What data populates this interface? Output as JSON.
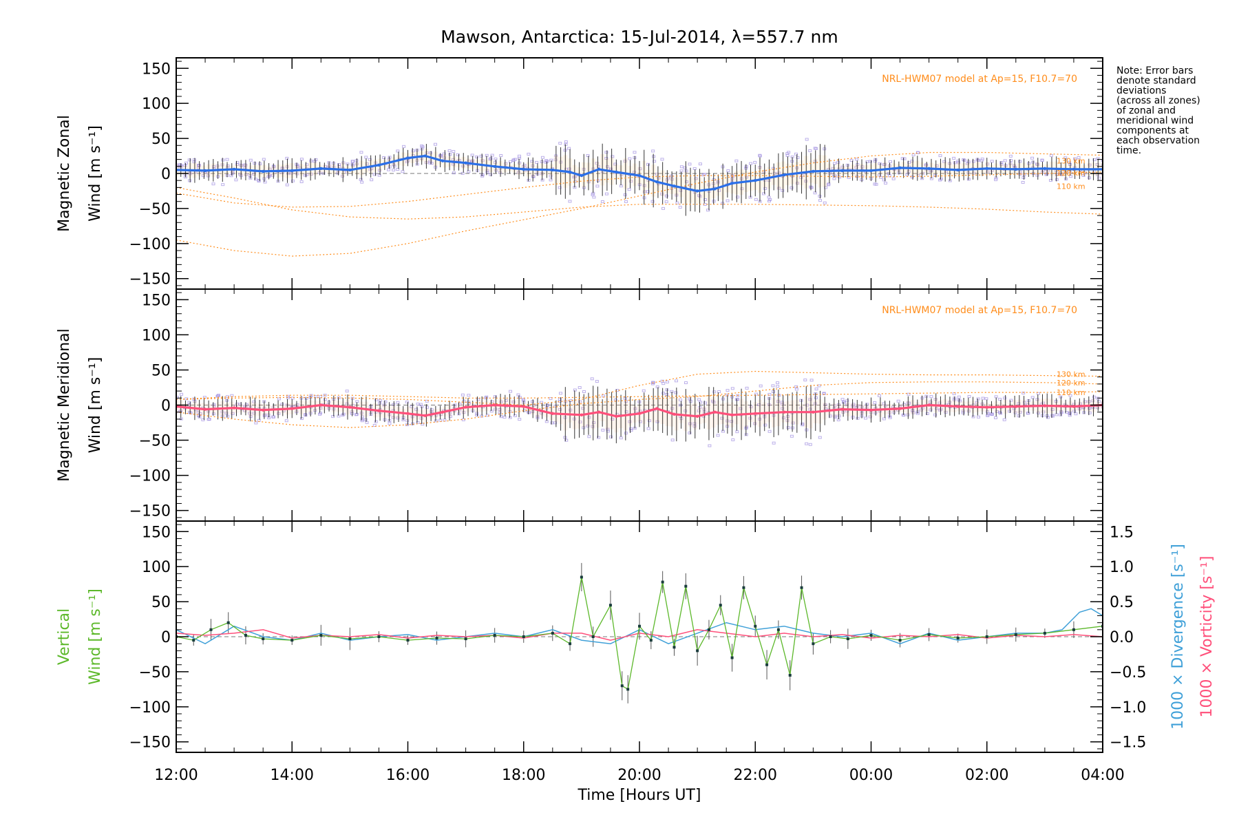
{
  "title": "Mawson, Antarctica: 15-Jul-2014, λ=557.7 nm",
  "note_lines": [
    "Note: Error bars",
    "denote standard",
    "deviations",
    "(across all zones)",
    "of zonal and",
    "meridional wind",
    "components at",
    "each observation",
    "time."
  ],
  "xlabel": "Time [Hours UT]",
  "x_ticks": [
    "12:00",
    "14:00",
    "16:00",
    "18:00",
    "20:00",
    "22:00",
    "00:00",
    "02:00",
    "04:00"
  ],
  "colors": {
    "zonal": "#2a6fe8",
    "meridional": "#ff4f7a",
    "vertical": "#5cb82a",
    "divergence": "#3fa0d8",
    "vorticity": "#ff4f7a",
    "model": "#ff8c1a",
    "scatter": "#9f8fe0",
    "errorbar": "#333333"
  },
  "chart_data": [
    {
      "type": "line",
      "panel": "zonal",
      "ylabel_line1": "Magnetic Zonal",
      "ylabel_line2": "Wind [m s⁻¹]",
      "ylim": [
        -165,
        165
      ],
      "y_ticks": [
        "150",
        "100",
        "50",
        "0",
        "−50",
        "−100",
        "−150"
      ],
      "model_label": "NRL-HWM07 model at Ap=15, F10.7=70",
      "model_height_labels": [
        "130 km",
        "120 km",
        "110 km"
      ],
      "series_points": [
        [
          12.0,
          5
        ],
        [
          12.5,
          4
        ],
        [
          13.0,
          6
        ],
        [
          13.5,
          3
        ],
        [
          14.0,
          4
        ],
        [
          14.5,
          7
        ],
        [
          15.0,
          5
        ],
        [
          15.5,
          12
        ],
        [
          16.0,
          22
        ],
        [
          16.3,
          25
        ],
        [
          16.6,
          18
        ],
        [
          17.0,
          15
        ],
        [
          17.5,
          10
        ],
        [
          18.0,
          6
        ],
        [
          18.5,
          5
        ],
        [
          18.8,
          2
        ],
        [
          19.0,
          -3
        ],
        [
          19.3,
          6
        ],
        [
          19.6,
          2
        ],
        [
          20.0,
          -3
        ],
        [
          20.3,
          -12
        ],
        [
          20.6,
          -18
        ],
        [
          21.0,
          -25
        ],
        [
          21.3,
          -22
        ],
        [
          21.6,
          -14
        ],
        [
          22.0,
          -10
        ],
        [
          22.5,
          -2
        ],
        [
          23.0,
          3
        ],
        [
          23.5,
          4
        ],
        [
          24.0,
          4
        ],
        [
          24.5,
          8
        ],
        [
          25.0,
          7
        ],
        [
          25.5,
          5
        ],
        [
          26.0,
          7
        ],
        [
          26.5,
          6
        ],
        [
          27.0,
          7
        ],
        [
          27.5,
          6
        ],
        [
          28.0,
          6
        ]
      ],
      "model_curves": [
        {
          "name": "130 km",
          "points": [
            [
              12.0,
              -95
            ],
            [
              13.0,
              -110
            ],
            [
              14.0,
              -118
            ],
            [
              15.0,
              -114
            ],
            [
              16.0,
              -100
            ],
            [
              17.0,
              -82
            ],
            [
              18.0,
              -66
            ],
            [
              19.0,
              -50
            ],
            [
              20.0,
              -32
            ],
            [
              21.0,
              -14
            ],
            [
              22.0,
              2
            ],
            [
              23.0,
              15
            ],
            [
              24.0,
              25
            ],
            [
              25.0,
              30
            ],
            [
              26.0,
              30
            ],
            [
              27.0,
              28
            ],
            [
              28.0,
              26
            ]
          ]
        },
        {
          "name": "120 km",
          "points": [
            [
              12.0,
              -28
            ],
            [
              13.0,
              -42
            ],
            [
              14.0,
              -48
            ],
            [
              15.0,
              -47
            ],
            [
              16.0,
              -40
            ],
            [
              17.0,
              -30
            ],
            [
              18.0,
              -20
            ],
            [
              19.0,
              -11
            ],
            [
              20.0,
              -5
            ],
            [
              21.0,
              -3
            ],
            [
              22.0,
              -3
            ],
            [
              23.0,
              -4
            ],
            [
              24.0,
              -5
            ],
            [
              25.0,
              -4
            ],
            [
              26.0,
              -2
            ],
            [
              27.0,
              0
            ],
            [
              28.0,
              2
            ]
          ]
        },
        {
          "name": "110 km",
          "points": [
            [
              12.0,
              -20
            ],
            [
              13.0,
              -35
            ],
            [
              14.0,
              -52
            ],
            [
              15.0,
              -62
            ],
            [
              16.0,
              -65
            ],
            [
              17.0,
              -62
            ],
            [
              18.0,
              -55
            ],
            [
              19.0,
              -48
            ],
            [
              20.0,
              -44
            ],
            [
              21.0,
              -44
            ],
            [
              22.0,
              -44
            ],
            [
              23.0,
              -45
            ],
            [
              24.0,
              -46
            ],
            [
              25.0,
              -48
            ],
            [
              26.0,
              -51
            ],
            [
              27.0,
              -55
            ],
            [
              28.0,
              -58
            ]
          ]
        }
      ]
    },
    {
      "type": "line",
      "panel": "meridional",
      "ylabel_line1": "Magnetic Meridional",
      "ylabel_line2": "Wind [m s⁻¹]",
      "ylim": [
        -165,
        165
      ],
      "y_ticks": [
        "150",
        "100",
        "50",
        "0",
        "−50",
        "−100",
        "−150"
      ],
      "model_label": "NRL-HWM07 model at Ap=15, F10.7=70",
      "model_height_labels": [
        "130 km",
        "120 km",
        "110 km"
      ],
      "series_points": [
        [
          12.0,
          -2
        ],
        [
          12.5,
          -6
        ],
        [
          13.0,
          -4
        ],
        [
          13.5,
          -7
        ],
        [
          14.0,
          -5
        ],
        [
          14.5,
          0
        ],
        [
          15.0,
          -3
        ],
        [
          15.5,
          -8
        ],
        [
          16.0,
          -12
        ],
        [
          16.3,
          -15
        ],
        [
          16.6,
          -10
        ],
        [
          17.0,
          -3
        ],
        [
          17.5,
          0
        ],
        [
          18.0,
          -2
        ],
        [
          18.5,
          -12
        ],
        [
          19.0,
          -14
        ],
        [
          19.3,
          -10
        ],
        [
          19.6,
          -16
        ],
        [
          20.0,
          -12
        ],
        [
          20.3,
          -5
        ],
        [
          20.6,
          -13
        ],
        [
          21.0,
          -16
        ],
        [
          21.3,
          -10
        ],
        [
          21.6,
          -14
        ],
        [
          22.0,
          -12
        ],
        [
          22.5,
          -10
        ],
        [
          23.0,
          -10
        ],
        [
          23.5,
          -6
        ],
        [
          24.0,
          -7
        ],
        [
          24.5,
          -5
        ],
        [
          25.0,
          0
        ],
        [
          25.5,
          -2
        ],
        [
          26.0,
          -3
        ],
        [
          26.5,
          -2
        ],
        [
          27.0,
          -1
        ],
        [
          27.5,
          -2
        ],
        [
          28.0,
          0
        ]
      ],
      "model_curves": [
        {
          "name": "130 km",
          "points": [
            [
              12.0,
              8
            ],
            [
              13.0,
              10
            ],
            [
              14.0,
              11
            ],
            [
              15.0,
              10
            ],
            [
              16.0,
              8
            ],
            [
              17.0,
              4
            ],
            [
              18.0,
              0
            ],
            [
              19.0,
              8
            ],
            [
              20.0,
              28
            ],
            [
              21.0,
              44
            ],
            [
              22.0,
              48
            ],
            [
              23.0,
              46
            ],
            [
              24.0,
              44
            ],
            [
              25.0,
              43
            ],
            [
              26.0,
              43
            ],
            [
              27.0,
              42
            ],
            [
              28.0,
              41
            ]
          ]
        },
        {
          "name": "120 km",
          "points": [
            [
              12.0,
              -10
            ],
            [
              13.0,
              -20
            ],
            [
              14.0,
              -28
            ],
            [
              15.0,
              -32
            ],
            [
              16.0,
              -28
            ],
            [
              17.0,
              -20
            ],
            [
              18.0,
              -8
            ],
            [
              19.0,
              2
            ],
            [
              20.0,
              8
            ],
            [
              21.0,
              12
            ],
            [
              22.0,
              20
            ],
            [
              23.0,
              28
            ],
            [
              24.0,
              32
            ],
            [
              25.0,
              33
            ],
            [
              26.0,
              33
            ],
            [
              27.0,
              32
            ],
            [
              28.0,
              30
            ]
          ]
        },
        {
          "name": "110 km",
          "points": [
            [
              12.0,
              8
            ],
            [
              13.0,
              12
            ],
            [
              14.0,
              14
            ],
            [
              15.0,
              14
            ],
            [
              16.0,
              12
            ],
            [
              17.0,
              10
            ],
            [
              18.0,
              10
            ],
            [
              19.0,
              11
            ],
            [
              20.0,
              12
            ],
            [
              21.0,
              13
            ],
            [
              22.0,
              14
            ],
            [
              23.0,
              15
            ],
            [
              24.0,
              16
            ],
            [
              25.0,
              17
            ],
            [
              26.0,
              18
            ],
            [
              27.0,
              18
            ],
            [
              28.0,
              19
            ]
          ]
        }
      ]
    },
    {
      "type": "line",
      "panel": "vertical",
      "ylabel_line1": "Vertical",
      "ylabel_line2": "Wind [m s⁻¹]",
      "ylim": [
        -165,
        165
      ],
      "y_ticks": [
        "150",
        "100",
        "50",
        "0",
        "−50",
        "−100",
        "−150"
      ],
      "right_ylim": [
        -1.65,
        1.65
      ],
      "right_y_ticks": [
        "1.5",
        "1.0",
        "0.5",
        "0.0",
        "−0.5",
        "−1.0",
        "−1.5"
      ],
      "right_label_divergence": "1000 × Divergence [s⁻¹]",
      "right_label_vorticity": "1000 × Vorticity [s⁻¹]",
      "series_points": [
        [
          12.0,
          0
        ],
        [
          12.3,
          -5
        ],
        [
          12.6,
          10
        ],
        [
          12.9,
          20
        ],
        [
          13.2,
          2
        ],
        [
          13.5,
          -3
        ],
        [
          14.0,
          -5
        ],
        [
          14.5,
          2
        ],
        [
          15.0,
          -3
        ],
        [
          15.5,
          0
        ],
        [
          16.0,
          -5
        ],
        [
          16.5,
          -2
        ],
        [
          17.0,
          -3
        ],
        [
          17.5,
          2
        ],
        [
          18.0,
          0
        ],
        [
          18.5,
          5
        ],
        [
          18.8,
          -10
        ],
        [
          19.0,
          85
        ],
        [
          19.2,
          0
        ],
        [
          19.5,
          45
        ],
        [
          19.7,
          -70
        ],
        [
          19.8,
          -75
        ],
        [
          20.0,
          15
        ],
        [
          20.2,
          -5
        ],
        [
          20.4,
          78
        ],
        [
          20.6,
          -15
        ],
        [
          20.8,
          72
        ],
        [
          21.0,
          -20
        ],
        [
          21.2,
          10
        ],
        [
          21.4,
          45
        ],
        [
          21.6,
          -30
        ],
        [
          21.8,
          70
        ],
        [
          22.0,
          15
        ],
        [
          22.2,
          -40
        ],
        [
          22.4,
          10
        ],
        [
          22.6,
          -55
        ],
        [
          22.8,
          70
        ],
        [
          23.0,
          -10
        ],
        [
          23.3,
          0
        ],
        [
          23.6,
          -3
        ],
        [
          24.0,
          2
        ],
        [
          24.5,
          -5
        ],
        [
          25.0,
          3
        ],
        [
          25.5,
          -2
        ],
        [
          26.0,
          0
        ],
        [
          26.5,
          3
        ],
        [
          27.0,
          5
        ],
        [
          27.5,
          10
        ],
        [
          28.0,
          15
        ]
      ],
      "divergence_points": [
        [
          12.0,
          0.1
        ],
        [
          12.5,
          -0.1
        ],
        [
          13.0,
          0.15
        ],
        [
          13.5,
          0.0
        ],
        [
          14.0,
          -0.05
        ],
        [
          14.5,
          0.05
        ],
        [
          15.0,
          -0.05
        ],
        [
          15.5,
          0.0
        ],
        [
          16.0,
          0.03
        ],
        [
          16.5,
          -0.05
        ],
        [
          17.0,
          0.0
        ],
        [
          17.5,
          0.05
        ],
        [
          18.0,
          0.0
        ],
        [
          18.5,
          0.1
        ],
        [
          19.0,
          -0.05
        ],
        [
          19.5,
          -0.1
        ],
        [
          20.0,
          0.1
        ],
        [
          20.5,
          -0.1
        ],
        [
          21.0,
          0.05
        ],
        [
          21.5,
          0.2
        ],
        [
          22.0,
          0.1
        ],
        [
          22.5,
          0.15
        ],
        [
          23.0,
          0.05
        ],
        [
          23.5,
          0.0
        ],
        [
          24.0,
          0.05
        ],
        [
          24.5,
          -0.1
        ],
        [
          25.0,
          0.05
        ],
        [
          25.5,
          -0.05
        ],
        [
          26.0,
          0.0
        ],
        [
          26.5,
          0.05
        ],
        [
          27.0,
          0.05
        ],
        [
          27.3,
          0.1
        ],
        [
          27.6,
          0.35
        ],
        [
          27.8,
          0.4
        ],
        [
          28.0,
          0.3
        ]
      ],
      "vorticity_points": [
        [
          12.0,
          0.05
        ],
        [
          12.5,
          0.02
        ],
        [
          13.0,
          0.05
        ],
        [
          13.5,
          0.1
        ],
        [
          14.0,
          -0.02
        ],
        [
          14.5,
          0.02
        ],
        [
          15.0,
          0.0
        ],
        [
          15.5,
          0.03
        ],
        [
          16.0,
          -0.02
        ],
        [
          16.5,
          0.02
        ],
        [
          17.0,
          0.0
        ],
        [
          17.5,
          0.02
        ],
        [
          18.0,
          -0.02
        ],
        [
          18.5,
          0.05
        ],
        [
          19.0,
          0.05
        ],
        [
          19.5,
          -0.05
        ],
        [
          20.0,
          0.05
        ],
        [
          20.5,
          0.0
        ],
        [
          21.0,
          0.1
        ],
        [
          21.5,
          0.05
        ],
        [
          22.0,
          0.0
        ],
        [
          22.5,
          0.05
        ],
        [
          23.0,
          0.0
        ],
        [
          23.5,
          0.03
        ],
        [
          24.0,
          -0.02
        ],
        [
          24.5,
          0.02
        ],
        [
          25.0,
          0.0
        ],
        [
          25.5,
          0.03
        ],
        [
          26.0,
          -0.02
        ],
        [
          26.5,
          0.02
        ],
        [
          27.0,
          0.0
        ],
        [
          27.5,
          0.03
        ],
        [
          28.0,
          0.0
        ]
      ]
    }
  ]
}
